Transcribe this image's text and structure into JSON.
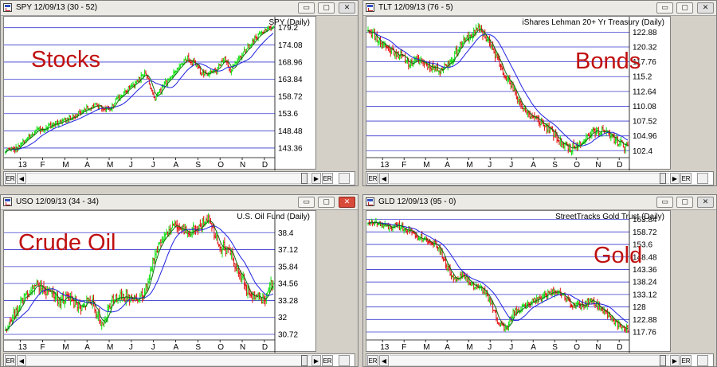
{
  "windows": [
    {
      "id": "spy",
      "title": "SPY 12/09/13 (30 - 52)",
      "chart_title": "SPY (Daily)",
      "big_label": "Stocks",
      "close_red": false,
      "chart_data": {
        "type": "candlestick",
        "title": "SPY (Daily)",
        "y_ticks": [
          143.36,
          148.48,
          153.6,
          158.72,
          163.84,
          168.96,
          174.08,
          179.2
        ],
        "ylim": [
          140.5,
          181.5
        ],
        "x_ticks": [
          "13",
          "F",
          "M",
          "A",
          "M",
          "J",
          "J",
          "A",
          "S",
          "O",
          "N",
          "D"
        ],
        "anchors": [
          [
            0,
            142.5
          ],
          [
            0.05,
            143.5
          ],
          [
            0.08,
            146.5
          ],
          [
            0.12,
            148.5
          ],
          [
            0.16,
            150
          ],
          [
            0.2,
            151
          ],
          [
            0.25,
            152.5
          ],
          [
            0.3,
            155
          ],
          [
            0.34,
            156
          ],
          [
            0.38,
            154.5
          ],
          [
            0.42,
            158
          ],
          [
            0.46,
            161
          ],
          [
            0.5,
            164
          ],
          [
            0.52,
            166
          ],
          [
            0.54,
            162
          ],
          [
            0.56,
            158
          ],
          [
            0.6,
            163
          ],
          [
            0.64,
            167
          ],
          [
            0.68,
            170
          ],
          [
            0.71,
            168
          ],
          [
            0.74,
            165
          ],
          [
            0.78,
            166
          ],
          [
            0.82,
            170
          ],
          [
            0.84,
            166
          ],
          [
            0.86,
            169
          ],
          [
            0.9,
            173
          ],
          [
            0.94,
            176.5
          ],
          [
            0.97,
            178.5
          ],
          [
            1,
            179
          ]
        ],
        "ma_short": 6,
        "ma_long": 20,
        "noise": 1.0,
        "seed": 3
      }
    },
    {
      "id": "tlt",
      "title": "TLT 12/09/13 (76 - 5)",
      "chart_title": "iShares Lehman 20+ Yr Treasury (Daily)",
      "big_label": "Bonds",
      "close_red": false,
      "chart_data": {
        "type": "candlestick",
        "title": "iShares Lehman 20+ Yr Treasury (Daily)",
        "y_ticks": [
          102.4,
          104.96,
          107.52,
          110.08,
          112.64,
          115.2,
          117.76,
          120.32,
          122.88
        ],
        "ylim": [
          101.2,
          125
        ],
        "x_ticks": [
          "13",
          "F",
          "M",
          "A",
          "M",
          "J",
          "J",
          "A",
          "S",
          "O",
          "N",
          "D"
        ],
        "anchors": [
          [
            0,
            123.5
          ],
          [
            0.04,
            121.5
          ],
          [
            0.08,
            120
          ],
          [
            0.12,
            119
          ],
          [
            0.16,
            117.5
          ],
          [
            0.2,
            118
          ],
          [
            0.24,
            117
          ],
          [
            0.28,
            116.5
          ],
          [
            0.32,
            118
          ],
          [
            0.36,
            121
          ],
          [
            0.4,
            122.5
          ],
          [
            0.43,
            123.5
          ],
          [
            0.46,
            121.5
          ],
          [
            0.5,
            118
          ],
          [
            0.54,
            114.5
          ],
          [
            0.58,
            111
          ],
          [
            0.62,
            108.5
          ],
          [
            0.66,
            107.5
          ],
          [
            0.7,
            106
          ],
          [
            0.74,
            103.8
          ],
          [
            0.78,
            102.8
          ],
          [
            0.82,
            104
          ],
          [
            0.86,
            105.5
          ],
          [
            0.9,
            106
          ],
          [
            0.93,
            105
          ],
          [
            0.96,
            104
          ],
          [
            1,
            102.8
          ]
        ],
        "ma_short": 6,
        "ma_long": 20,
        "noise": 0.8,
        "seed": 11
      }
    },
    {
      "id": "uso",
      "title": "USO 12/09/13 (34 - 34)",
      "chart_title": "U.S. Oil Fund (Daily)",
      "big_label": "Crude Oil",
      "close_red": true,
      "chart_data": {
        "type": "candlestick",
        "title": "U.S. Oil Fund (Daily)",
        "y_ticks": [
          30.72,
          32,
          33.28,
          34.56,
          35.84,
          37.12,
          38.4
        ],
        "ylim": [
          30.3,
          39.8
        ],
        "x_ticks": [
          "13",
          "F",
          "M",
          "A",
          "M",
          "J",
          "J",
          "A",
          "S",
          "O",
          "N",
          "D"
        ],
        "anchors": [
          [
            0,
            31.2
          ],
          [
            0.04,
            32.5
          ],
          [
            0.08,
            33.8
          ],
          [
            0.12,
            34.5
          ],
          [
            0.16,
            34
          ],
          [
            0.2,
            33.3
          ],
          [
            0.24,
            33.5
          ],
          [
            0.28,
            32.8
          ],
          [
            0.32,
            33.3
          ],
          [
            0.36,
            31.5
          ],
          [
            0.4,
            33.3
          ],
          [
            0.44,
            33.6
          ],
          [
            0.48,
            33.4
          ],
          [
            0.52,
            33.8
          ],
          [
            0.56,
            37
          ],
          [
            0.6,
            38.5
          ],
          [
            0.64,
            38.8
          ],
          [
            0.68,
            38.5
          ],
          [
            0.72,
            38.8
          ],
          [
            0.76,
            39.3
          ],
          [
            0.8,
            37.5
          ],
          [
            0.84,
            36.8
          ],
          [
            0.87,
            35.5
          ],
          [
            0.9,
            34.2
          ],
          [
            0.93,
            33.6
          ],
          [
            0.96,
            33.2
          ],
          [
            1,
            34.8
          ]
        ],
        "ma_short": 6,
        "ma_long": 20,
        "noise": 0.45,
        "seed": 21
      }
    },
    {
      "id": "gld",
      "title": "GLD 12/09/13 (95 - 0)",
      "chart_title": "StreetTracks Gold Trust (Daily)",
      "big_label": "Gold",
      "close_red": false,
      "chart_data": {
        "type": "candlestick",
        "title": "StreetTracks Gold Trust (Daily)",
        "y_ticks": [
          117.76,
          122.88,
          128,
          133.12,
          138.24,
          143.36,
          148.48,
          153.6,
          158.72,
          163.84
        ],
        "ylim": [
          114.5,
          166
        ],
        "x_ticks": [
          "13",
          "F",
          "M",
          "A",
          "M",
          "J",
          "J",
          "A",
          "S",
          "O",
          "N",
          "D"
        ],
        "anchors": [
          [
            0,
            163
          ],
          [
            0.04,
            162
          ],
          [
            0.08,
            160.5
          ],
          [
            0.12,
            161
          ],
          [
            0.16,
            159.5
          ],
          [
            0.2,
            156.5
          ],
          [
            0.24,
            155
          ],
          [
            0.27,
            153
          ],
          [
            0.3,
            145
          ],
          [
            0.33,
            139.5
          ],
          [
            0.36,
            141.5
          ],
          [
            0.4,
            137
          ],
          [
            0.44,
            135
          ],
          [
            0.47,
            131
          ],
          [
            0.5,
            122
          ],
          [
            0.53,
            118.5
          ],
          [
            0.56,
            126
          ],
          [
            0.6,
            128
          ],
          [
            0.64,
            130.5
          ],
          [
            0.68,
            132.5
          ],
          [
            0.72,
            135
          ],
          [
            0.75,
            133
          ],
          [
            0.78,
            129
          ],
          [
            0.82,
            128.5
          ],
          [
            0.86,
            130.5
          ],
          [
            0.9,
            127
          ],
          [
            0.93,
            124
          ],
          [
            0.96,
            121
          ],
          [
            1,
            118.5
          ]
        ],
        "ma_short": 6,
        "ma_long": 20,
        "noise": 1.6,
        "seed": 33
      }
    }
  ],
  "buttons": {
    "minimize": "▭",
    "maximize": "▢",
    "close": "✕"
  },
  "scroll": {
    "er_label": "ER",
    "left_arrow": "◀",
    "right_arrow": "▶"
  },
  "colors": {
    "grid": "#3a3ad0",
    "ma_long": "#2020e0",
    "ma_short": "#107010",
    "up": "#10e010",
    "down": "#e01010"
  }
}
